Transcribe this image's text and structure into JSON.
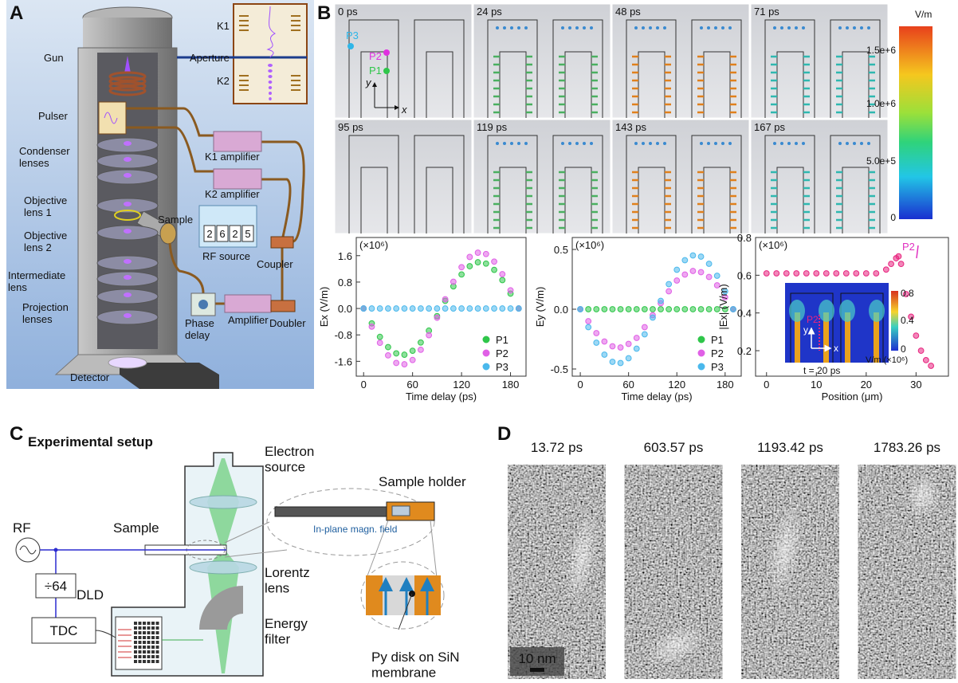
{
  "panel_labels": [
    "A",
    "B",
    "C",
    "D"
  ],
  "panel_a": {
    "labels": [
      "Gun",
      "Pulser",
      "Condenser\nlenses",
      "Objective\nlens 1",
      "Objective\nlens 2",
      "Intermediate\nlens",
      "Projection\nlenses",
      "Detector",
      "K1 amplifier",
      "K2 amplifier",
      "Sample",
      "RF source",
      "Coupler",
      "Phase\ndelay",
      "Amplifier",
      "Doubler"
    ],
    "inset": [
      "K1",
      "Aperture",
      "K2"
    ],
    "rf_display": [
      "2",
      "6",
      "2",
      "5"
    ]
  },
  "panel_b": {
    "snapshots": [
      "0 ps",
      "24 ps",
      "48 ps",
      "71 ps",
      "95 ps",
      "119 ps",
      "143 ps",
      "167 ps"
    ],
    "snapshot_labels": [
      "P3",
      "P2",
      "P1",
      "y",
      "x"
    ],
    "colorbar": {
      "label": "V/m",
      "ticks": [
        "1.5e+6",
        "1.0e+6",
        "5.0e+5",
        "0"
      ]
    }
  },
  "chart_data": [
    {
      "type": "scatter",
      "y_label": "Ex (V/m)",
      "y_multiplier": "(×10⁶)",
      "x_label": "Time delay (ps)",
      "x": [
        0,
        10,
        20,
        30,
        40,
        50,
        60,
        70,
        80,
        90,
        100,
        110,
        120,
        130,
        140,
        150,
        160,
        170,
        180,
        190
      ],
      "series": [
        {
          "name": "P1",
          "color": "#2fc64a",
          "values": [
            0,
            -0.45,
            -0.86,
            -1.17,
            -1.36,
            -1.4,
            -1.28,
            -1.03,
            -0.67,
            -0.23,
            0.23,
            0.67,
            1.03,
            1.28,
            1.4,
            1.36,
            1.17,
            0.86,
            0.45,
            0
          ]
        },
        {
          "name": "P2",
          "color": "#e060e6",
          "values": [
            0,
            -0.55,
            -1.04,
            -1.42,
            -1.65,
            -1.69,
            -1.56,
            -1.25,
            -0.81,
            -0.28,
            0.28,
            0.81,
            1.25,
            1.56,
            1.69,
            1.65,
            1.42,
            1.04,
            0.55,
            0
          ]
        },
        {
          "name": "P3",
          "color": "#4ab8ec",
          "values": [
            0,
            0,
            0,
            0,
            0,
            0,
            0,
            0,
            0,
            0,
            0,
            0,
            0,
            0,
            0,
            0,
            0,
            0,
            0,
            0
          ]
        }
      ],
      "xlim": [
        -9,
        199
      ],
      "ylim": [
        -2.05,
        2.15
      ],
      "xticks": [
        0,
        60,
        120,
        180
      ],
      "yticks": [
        -1.6,
        -0.8,
        {
          "value": 0,
          "label": "0.0"
        },
        0.8,
        1.6
      ],
      "legend": "lower right"
    },
    {
      "type": "scatter",
      "y_label": "Ey (V/m)",
      "y_multiplier": "(×10⁶)",
      "x_label": "Time delay (ps)",
      "x": [
        0,
        10,
        20,
        30,
        40,
        50,
        60,
        70,
        80,
        90,
        100,
        110,
        120,
        130,
        140,
        150,
        160,
        170,
        180,
        190
      ],
      "series": [
        {
          "name": "P1",
          "color": "#2fc64a",
          "values": [
            0,
            0,
            0,
            0,
            0,
            0,
            0,
            0,
            0,
            0,
            0,
            0,
            0,
            0,
            0,
            0,
            0,
            0,
            0,
            0
          ]
        },
        {
          "name": "P2",
          "color": "#e060e6",
          "values": [
            0,
            -0.1,
            -0.2,
            -0.27,
            -0.31,
            -0.32,
            -0.29,
            -0.24,
            -0.15,
            -0.05,
            0.05,
            0.15,
            0.24,
            0.29,
            0.32,
            0.31,
            0.27,
            0.2,
            0.1,
            0
          ]
        },
        {
          "name": "P3",
          "color": "#4ab8ec",
          "values": [
            0,
            -0.15,
            -0.28,
            -0.38,
            -0.44,
            -0.45,
            -0.41,
            -0.33,
            -0.21,
            -0.07,
            0.07,
            0.21,
            0.33,
            0.41,
            0.45,
            0.44,
            0.38,
            0.28,
            0.15,
            0
          ]
        }
      ],
      "xlim": [
        -10,
        200
      ],
      "ylim": [
        -0.56,
        0.6
      ],
      "xticks": [
        0,
        60,
        120,
        180
      ],
      "yticks": [
        -0.5,
        {
          "value": 0,
          "label": "0.0"
        },
        0.5
      ],
      "legend": "lower right"
    },
    {
      "type": "scatter",
      "y_label": "|Ex| (V/m)",
      "y_multiplier": "(×10⁶)",
      "x_label": "Position (μm)",
      "annotation": "P2",
      "x": [
        0,
        2,
        4,
        6,
        8,
        10,
        12,
        14,
        16,
        18,
        20,
        22,
        24,
        25,
        26,
        26.5,
        27,
        28,
        29,
        30,
        31,
        32,
        33
      ],
      "values": [
        0.61,
        0.61,
        0.61,
        0.61,
        0.61,
        0.61,
        0.61,
        0.61,
        0.61,
        0.61,
        0.61,
        0.61,
        0.63,
        0.66,
        0.69,
        0.7,
        0.66,
        0.5,
        0.38,
        0.28,
        0.2,
        0.15,
        0.12
      ],
      "color": "#e8257f",
      "xlim": [
        -2.2,
        36.5
      ],
      "ylim": [
        0.065,
        0.8
      ],
      "xticks": [
        0,
        10,
        20,
        30
      ],
      "yticks": [
        0.2,
        0.4,
        0.6,
        0.8
      ],
      "inset": {
        "labels": [
          "P2",
          "y",
          "x",
          "t = 20 ps"
        ],
        "colorbar_ticks": [
          "0.8",
          "0.4",
          "0"
        ],
        "colorbar_label": "V/m (×10⁶)"
      }
    }
  ],
  "panel_c": {
    "title": "Experimental setup",
    "labels": [
      "Electron\nsource",
      "Sample holder",
      "Sample",
      "RF",
      "In-plane magn. field",
      "Lorentz\nlens",
      "÷64",
      "DLD",
      "TDC",
      "Energy\nfilter",
      "Py disk on SiN\nmembrane"
    ]
  },
  "panel_d": {
    "frames": [
      "13.72 ps",
      "603.57 ps",
      "1193.42 ps",
      "1783.26 ps"
    ],
    "scale_bar": "10 nm"
  }
}
